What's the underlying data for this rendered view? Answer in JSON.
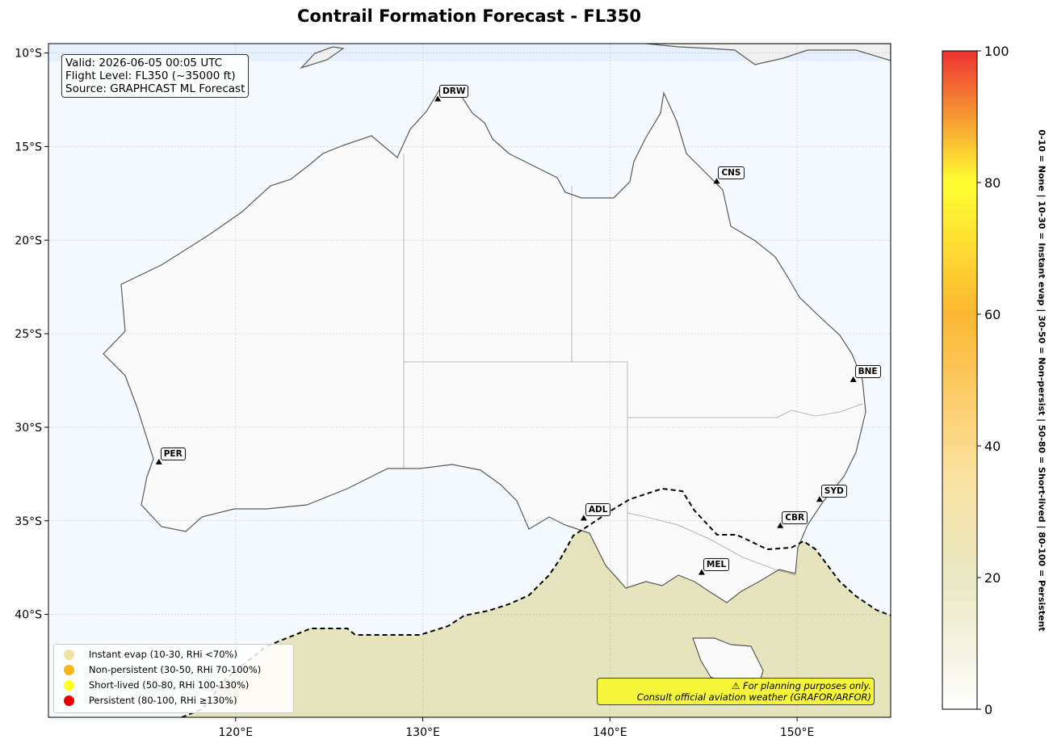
{
  "title": "Contrail Formation Forecast - FL350",
  "info": {
    "valid": "Valid: 2026-06-05 00:05 UTC",
    "flight_level": "Flight Level: FL350 (~35000 ft)",
    "source": "Source: GRAPHCAST ML Forecast"
  },
  "axes": {
    "lon_range": [
      110,
      155
    ],
    "lat_range": [
      -45.5,
      -9.5
    ],
    "lon_ticks": [
      {
        "value": 120,
        "label": "120°E"
      },
      {
        "value": 130,
        "label": "130°E"
      },
      {
        "value": 140,
        "label": "140°E"
      },
      {
        "value": 150,
        "label": "150°E"
      }
    ],
    "lat_ticks": [
      {
        "value": -10,
        "label": "10°S"
      },
      {
        "value": -15,
        "label": "15°S"
      },
      {
        "value": -20,
        "label": "20°S"
      },
      {
        "value": -25,
        "label": "25°S"
      },
      {
        "value": -30,
        "label": "30°S"
      },
      {
        "value": -35,
        "label": "35°S"
      },
      {
        "value": -40,
        "label": "40°S"
      }
    ],
    "gridlines": true
  },
  "cities": [
    {
      "code": "DRW",
      "lon": 130.8,
      "lat": -12.5
    },
    {
      "code": "CNS",
      "lon": 145.7,
      "lat": -16.9
    },
    {
      "code": "BNE",
      "lon": 153.0,
      "lat": -27.5
    },
    {
      "code": "PER",
      "lon": 115.9,
      "lat": -31.9
    },
    {
      "code": "ADL",
      "lon": 138.6,
      "lat": -34.9
    },
    {
      "code": "SYD",
      "lon": 151.2,
      "lat": -33.9
    },
    {
      "code": "CBR",
      "lon": 149.1,
      "lat": -35.3
    },
    {
      "code": "MEL",
      "lon": 144.9,
      "lat": -37.8
    }
  ],
  "legend": [
    {
      "label": "Instant evap (10-30, RHi <70%)",
      "color": "#f0e2a2"
    },
    {
      "label": "Non-persistent (30-50, RHi 70-100%)",
      "color": "#fbb514"
    },
    {
      "label": "Short-lived (50-80, RHi 100-130%)",
      "color": "#ffff1a"
    },
    {
      "label": "Persistent (80-100, RHi ≥130%)",
      "color": "#e60000"
    }
  ],
  "disclaimer": {
    "line1": "⚠ For planning purposes only.",
    "line2": "Consult official aviation weather (GRAFOR/ARFOR)"
  },
  "colorbar": {
    "min": 0,
    "max": 100,
    "ticks": [
      "0",
      "20",
      "40",
      "60",
      "80",
      "100"
    ],
    "label": "0-10 = None  |  10-30 = Instant evap  |  30-50 = Non-persist  |  50-80 = Short-lived  |  80-100 = Persistent",
    "stops": [
      {
        "value": 0,
        "color": "#ffffff"
      },
      {
        "value": 20,
        "color": "#e9e8c2"
      },
      {
        "value": 35,
        "color": "#fae3a2"
      },
      {
        "value": 60,
        "color": "#fcb732"
      },
      {
        "value": 80,
        "color": "#ffff33"
      },
      {
        "value": 100,
        "color": "#ee3333"
      }
    ]
  },
  "colors": {
    "ocean": "#f5faff",
    "land": "#fafafa",
    "coast": "#5a5a5a",
    "boundary": "#2b2b2b",
    "contrail_fill": "#e6e4bc"
  }
}
